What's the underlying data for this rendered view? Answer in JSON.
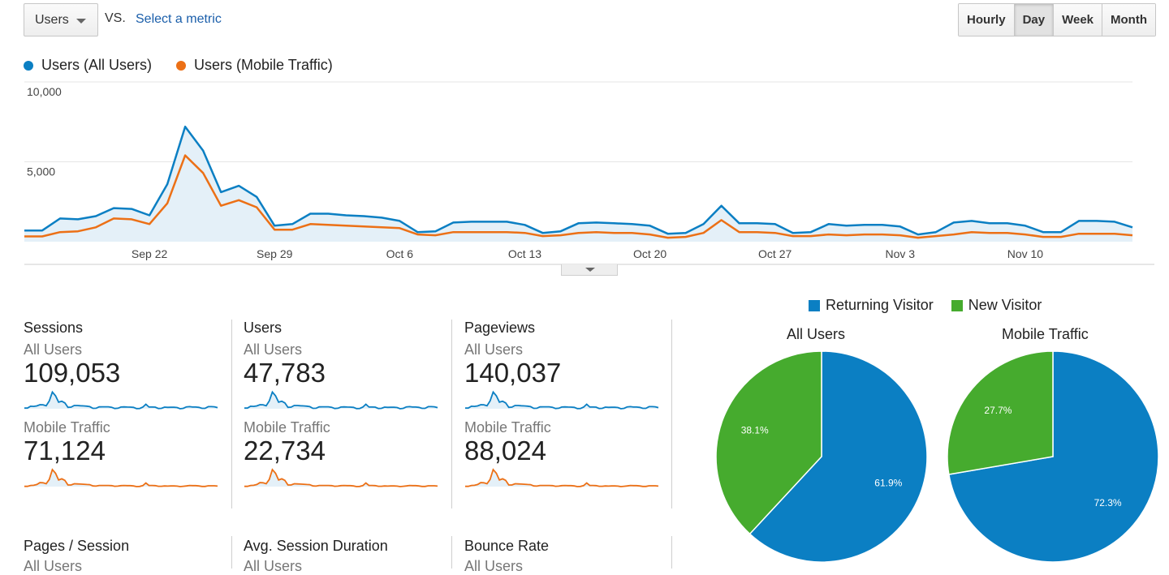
{
  "controls": {
    "metric_dropdown": "Users",
    "vs_label": "VS.",
    "select_metric": "Select a metric",
    "granularity": [
      "Hourly",
      "Day",
      "Week",
      "Month"
    ],
    "granularity_active": "Day"
  },
  "colors": {
    "all_users": "#0b7fc3",
    "mobile": "#ec7016",
    "fill": "#e4f0f8",
    "returning": "#0b7fc3",
    "new": "#46ab2e"
  },
  "chart_data": {
    "type": "line",
    "title": "",
    "ylim": [
      0,
      10000
    ],
    "y_ticks": [
      "10,000",
      "5,000"
    ],
    "x_tick_labels": [
      "Sep 22",
      "Sep 29",
      "Oct 6",
      "Oct 13",
      "Oct 20",
      "Oct 27",
      "Nov 3",
      "Nov 10"
    ],
    "x_tick_day_index": [
      7,
      14,
      21,
      28,
      35,
      42,
      49,
      56
    ],
    "dates": "Sep 15 – Nov 15 (daily)",
    "series": [
      {
        "name": "Users (All Users)",
        "values": [
          700,
          700,
          1450,
          1400,
          1600,
          2100,
          2050,
          1650,
          3600,
          7200,
          5700,
          3100,
          3500,
          2800,
          1000,
          1100,
          1750,
          1750,
          1650,
          1600,
          1500,
          1300,
          600,
          650,
          1200,
          1250,
          1250,
          1250,
          1050,
          550,
          650,
          1150,
          1200,
          1150,
          1100,
          1000,
          500,
          550,
          1100,
          2250,
          1150,
          1150,
          1100,
          550,
          600,
          1100,
          1000,
          1050,
          1050,
          950,
          450,
          600,
          1200,
          1300,
          1150,
          1150,
          1000,
          600,
          600,
          1300,
          1300,
          1250,
          900
        ]
      },
      {
        "name": "Users (Mobile Traffic)",
        "values": [
          330,
          330,
          600,
          650,
          900,
          1450,
          1400,
          1100,
          2400,
          5400,
          4300,
          2250,
          2600,
          2150,
          750,
          750,
          1100,
          1050,
          1000,
          950,
          900,
          850,
          450,
          400,
          600,
          600,
          600,
          600,
          550,
          350,
          400,
          550,
          600,
          550,
          550,
          450,
          250,
          300,
          550,
          1350,
          600,
          600,
          550,
          350,
          350,
          450,
          400,
          450,
          450,
          400,
          250,
          350,
          450,
          600,
          550,
          550,
          450,
          300,
          300,
          500,
          500,
          500,
          400
        ]
      }
    ]
  },
  "scorecards": [
    {
      "metric": "Sessions",
      "seg1": "All Users",
      "val1": "109,053",
      "seg2": "Mobile Traffic",
      "val2": "71,124"
    },
    {
      "metric": "Users",
      "seg1": "All Users",
      "val1": "47,783",
      "seg2": "Mobile Traffic",
      "val2": "22,734"
    },
    {
      "metric": "Pageviews",
      "seg1": "All Users",
      "val1": "140,037",
      "seg2": "Mobile Traffic",
      "val2": "88,024"
    }
  ],
  "scorecards_row2": [
    {
      "metric": "Pages / Session",
      "seg1": "All Users"
    },
    {
      "metric": "Avg. Session Duration",
      "seg1": "All Users"
    },
    {
      "metric": "Bounce Rate",
      "seg1": "All Users"
    }
  ],
  "pies": {
    "legend": [
      "Returning Visitor",
      "New Visitor"
    ],
    "charts": [
      {
        "title": "All Users",
        "returning_pct": 61.9,
        "new_pct": 38.1,
        "returning_label": "61.9%",
        "new_label": "38.1%"
      },
      {
        "title": "Mobile Traffic",
        "returning_pct": 72.3,
        "new_pct": 27.7,
        "returning_label": "72.3%",
        "new_label": "27.7%"
      }
    ]
  }
}
